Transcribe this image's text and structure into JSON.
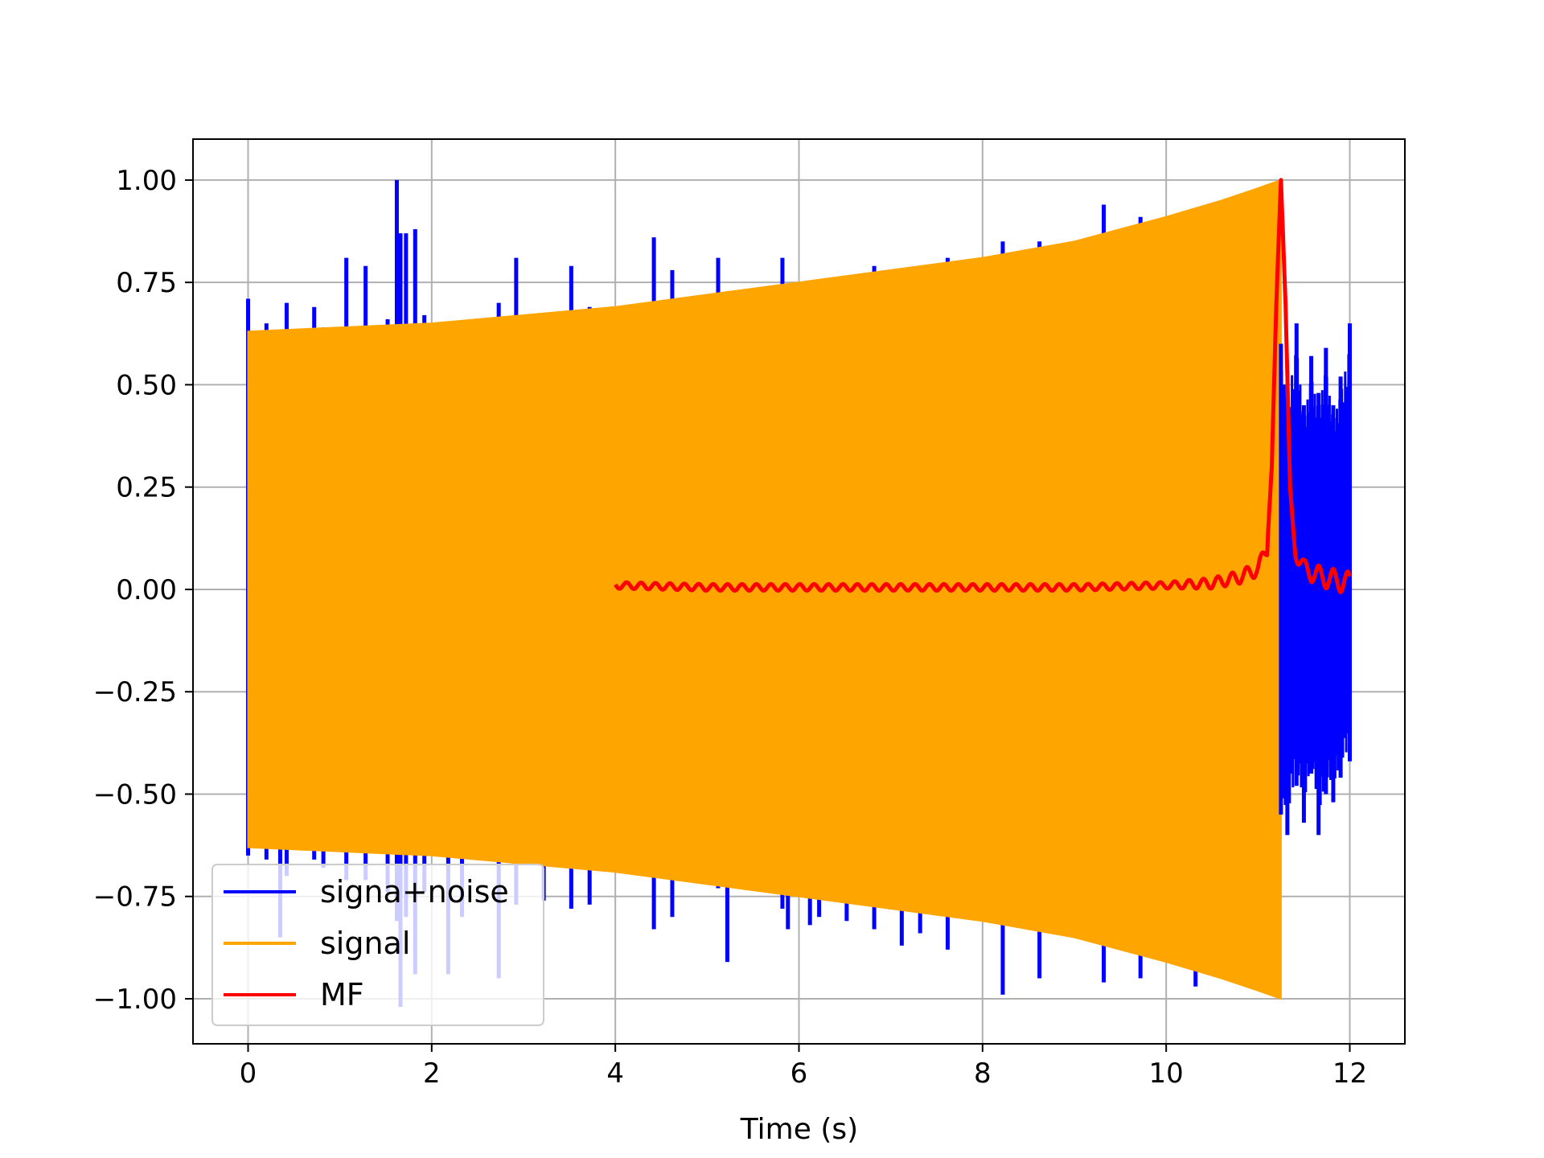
{
  "chart_data": {
    "type": "line",
    "title": "",
    "xlabel": "Time (s)",
    "ylabel": "",
    "xlim": [
      -0.6,
      12.6
    ],
    "ylim": [
      -1.11,
      1.1
    ],
    "grid": true,
    "legend_position": "lower-left",
    "xticks": [
      0,
      2,
      4,
      6,
      8,
      10,
      12
    ],
    "xtick_labels": [
      "0",
      "2",
      "4",
      "6",
      "8",
      "10",
      "12"
    ],
    "yticks": [
      1.0,
      0.75,
      0.5,
      0.25,
      0.0,
      -0.25,
      -0.5,
      -0.75,
      -1.0
    ],
    "ytick_labels": [
      "1.00",
      "0.75",
      "0.50",
      "0.25",
      "0.00",
      "−0.25",
      "−0.50",
      "−0.75",
      "−1.00"
    ],
    "series": [
      {
        "name": "signa+noise",
        "color": "#0000ff",
        "description": "noisy chirp, spikes up to 1.00 and down to -1.02; visible after t=11.25",
        "spikes": [
          [
            0.0,
            0.71,
            -0.65
          ],
          [
            0.2,
            0.65,
            -0.66
          ],
          [
            0.35,
            0.63,
            -0.85
          ],
          [
            0.42,
            0.7,
            -0.7
          ],
          [
            0.72,
            0.69,
            -0.66
          ],
          [
            0.82,
            0.64,
            -0.68
          ],
          [
            1.07,
            0.81,
            -0.71
          ],
          [
            1.28,
            0.79,
            -0.71
          ],
          [
            1.52,
            0.66,
            -0.74
          ],
          [
            1.62,
            1.0,
            -0.81
          ],
          [
            1.66,
            0.87,
            -1.02
          ],
          [
            1.72,
            0.87,
            -0.8
          ],
          [
            1.82,
            0.88,
            -0.94
          ],
          [
            1.92,
            0.67,
            -0.74
          ],
          [
            2.18,
            0.63,
            -0.94
          ],
          [
            2.33,
            0.63,
            -0.8
          ],
          [
            2.73,
            0.7,
            -0.95
          ],
          [
            2.92,
            0.81,
            -0.77
          ],
          [
            3.22,
            0.64,
            -0.76
          ],
          [
            3.52,
            0.79,
            -0.78
          ],
          [
            3.72,
            0.69,
            -0.77
          ],
          [
            4.42,
            0.86,
            -0.83
          ],
          [
            4.62,
            0.78,
            -0.8
          ],
          [
            5.12,
            0.81,
            -0.73
          ],
          [
            5.22,
            0.68,
            -0.91
          ],
          [
            5.82,
            0.81,
            -0.78
          ],
          [
            5.88,
            0.74,
            -0.83
          ],
          [
            6.12,
            0.71,
            -0.82
          ],
          [
            6.22,
            0.72,
            -0.8
          ],
          [
            6.52,
            0.66,
            -0.81
          ],
          [
            6.82,
            0.79,
            -0.83
          ],
          [
            7.12,
            0.77,
            -0.87
          ],
          [
            7.32,
            0.79,
            -0.84
          ],
          [
            7.62,
            0.81,
            -0.88
          ],
          [
            8.22,
            0.85,
            -0.99
          ],
          [
            8.62,
            0.85,
            -0.95
          ],
          [
            9.32,
            0.94,
            -0.96
          ],
          [
            9.72,
            0.91,
            -0.95
          ],
          [
            10.32,
            0.93,
            -0.97
          ],
          [
            10.62,
            0.95,
            -0.95
          ]
        ],
        "tail": [
          [
            11.25,
            0.6,
            -0.55
          ],
          [
            11.32,
            0.5,
            -0.6
          ],
          [
            11.42,
            0.65,
            -0.48
          ],
          [
            11.5,
            0.45,
            -0.57
          ],
          [
            11.58,
            0.57,
            -0.45
          ],
          [
            11.66,
            0.48,
            -0.6
          ],
          [
            11.74,
            0.59,
            -0.5
          ],
          [
            11.82,
            0.45,
            -0.52
          ],
          [
            11.9,
            0.52,
            -0.46
          ],
          [
            12.0,
            0.65,
            -0.42
          ]
        ]
      },
      {
        "name": "signal",
        "color": "#ffa500",
        "description": "chirp with growing amplitude from 0.63 to 1.00, ends at t=11.25",
        "envelope": [
          [
            0.0,
            0.63
          ],
          [
            2.0,
            0.65
          ],
          [
            4.0,
            0.69
          ],
          [
            6.0,
            0.75
          ],
          [
            8.0,
            0.81
          ],
          [
            9.0,
            0.85
          ],
          [
            10.0,
            0.91
          ],
          [
            10.6,
            0.95
          ],
          [
            11.0,
            0.98
          ],
          [
            11.25,
            1.0
          ]
        ],
        "tail_after": [
          [
            11.25,
            0.0
          ],
          [
            12.0,
            0.0
          ]
        ]
      },
      {
        "name": "MF",
        "color": "#ff0000",
        "description": "matched filter output, near zero from t=4, peaks at 1.00 at t=11.25",
        "x": [
          4.0,
          5.0,
          6.0,
          7.0,
          8.0,
          9.0,
          10.0,
          10.5,
          10.8,
          11.0,
          11.1,
          11.15,
          11.2,
          11.25,
          11.3,
          11.35,
          11.4,
          11.5,
          11.7,
          12.0
        ],
        "y": [
          0.01,
          0.005,
          0.005,
          0.005,
          0.005,
          0.005,
          0.01,
          0.015,
          0.03,
          0.05,
          0.1,
          0.3,
          0.7,
          1.0,
          0.7,
          0.25,
          0.1,
          0.05,
          0.03,
          0.015
        ]
      }
    ]
  }
}
